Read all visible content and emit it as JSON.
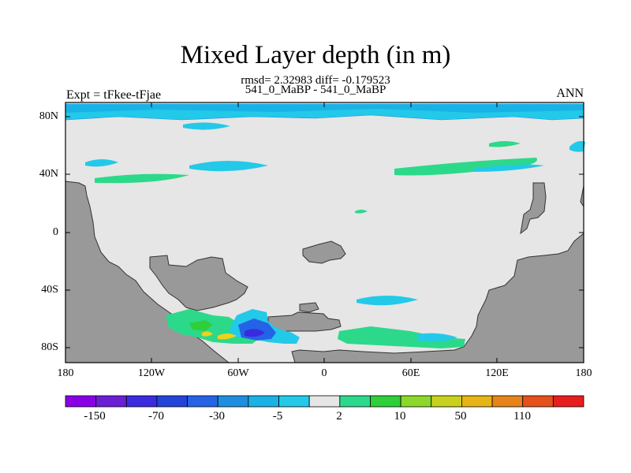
{
  "header": {
    "title": "Mixed Layer depth (in m)",
    "rmsd_line": "rmsd= 2.32983 diff= -0.179523",
    "subtitle": "541_0_MaBP - 541_0_MaBP",
    "left_label": "Expt = tFkee-tFjae",
    "right_label": "ANN"
  },
  "map": {
    "lat_ticks": [
      "80N",
      "40N",
      "0",
      "40S",
      "80S"
    ],
    "lon_ticks": [
      "180",
      "120W",
      "60W",
      "0",
      "60E",
      "120E",
      "180"
    ],
    "land_color": "#999999",
    "no_change_color": "#e6e6e6"
  },
  "colorbar": {
    "colors": [
      "#8a00e6",
      "#6a1fd6",
      "#3a2be0",
      "#2244d8",
      "#2563e6",
      "#1e8fe0",
      "#19b2e6",
      "#23c9e8",
      "#e6e6e6",
      "#2cd98a",
      "#2ecf3a",
      "#8cd82a",
      "#c8d21e",
      "#e6b414",
      "#e6841a",
      "#e6501a",
      "#e61e1e"
    ],
    "tick_labels": [
      "-150",
      "-70",
      "-30",
      "-5",
      "2",
      "10",
      "50",
      "110"
    ]
  }
}
